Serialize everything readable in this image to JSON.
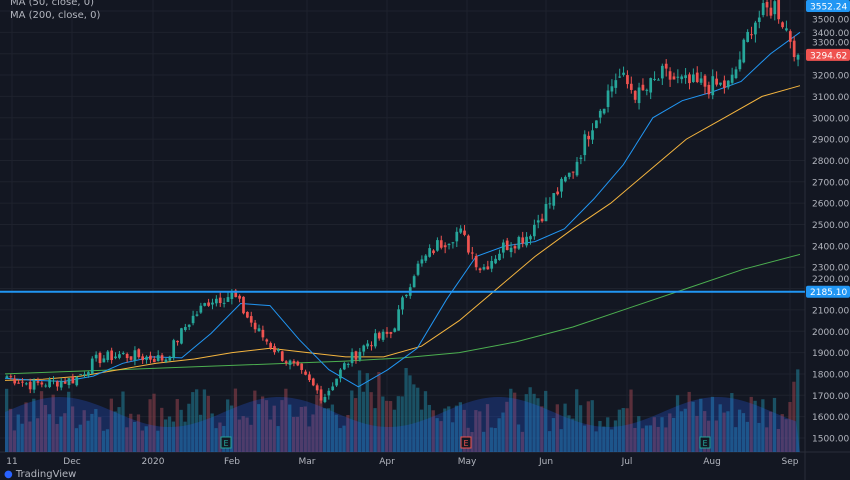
{
  "legend": {
    "ma50": "MA (50, close, 0)",
    "ma200": "MA (200, close, 0)"
  },
  "footer": {
    "brand": "TradingView"
  },
  "chart_data": {
    "type": "candlestick",
    "x_ticks": [
      "11",
      "Dec",
      "2020",
      "Feb",
      "Mar",
      "Apr",
      "May",
      "Jun",
      "Jul",
      "Aug",
      "Sep"
    ],
    "y_ticks": [
      1500,
      1600,
      1700,
      1800,
      1900,
      2000,
      2100,
      2200,
      2300,
      2400,
      2500,
      2600,
      2700,
      2800,
      2900,
      3000,
      3100,
      3200,
      3300,
      3400,
      3500
    ],
    "ylim": [
      1450,
      3560
    ],
    "close_path": [
      [
        "11",
        1790
      ],
      [
        "Nov-end",
        1750
      ],
      [
        "Dec",
        1760
      ],
      [
        "Dec-mid",
        1775
      ],
      [
        "Dec-end",
        1870
      ],
      [
        "2020",
        1890
      ],
      [
        "Jan-mid",
        1880
      ],
      [
        "Jan-end",
        1870
      ],
      [
        "Feb",
        2040
      ],
      [
        "Feb-mid",
        2150
      ],
      [
        "Feb-20",
        2170
      ],
      [
        "Feb-24",
        2010
      ],
      [
        "Mar",
        1900
      ],
      [
        "Mar-9",
        1800
      ],
      [
        "Mar-16",
        1690
      ],
      [
        "Mar-20",
        1850
      ],
      [
        "Mar-31",
        1950
      ],
      [
        "Apr",
        1990
      ],
      [
        "Apr-14",
        2280
      ],
      [
        "Apr-17",
        2400
      ],
      [
        "Apr-30",
        2470
      ],
      [
        "May",
        2290
      ],
      [
        "May-mid",
        2400
      ],
      [
        "Jun",
        2450
      ],
      [
        "Jun-mid",
        2600
      ],
      [
        "Jun-end",
        2750
      ],
      [
        "Jul",
        3000
      ],
      [
        "Jul-10",
        3200
      ],
      [
        "Jul-13",
        3100
      ],
      [
        "Jul-20",
        3200
      ],
      [
        "Jul-end",
        3160
      ],
      [
        "Aug",
        3150
      ],
      [
        "Aug-mid",
        3150
      ],
      [
        "Aug-end",
        3450
      ],
      [
        "Sep-2",
        3530
      ],
      [
        "Sep-3",
        3294.62
      ]
    ],
    "ma_fast": [
      1780,
      1770,
      1765,
      1790,
      1850,
      1880,
      1875,
      1990,
      2130,
      2120,
      1960,
      1820,
      1740,
      1820,
      1920,
      2150,
      2350,
      2400,
      2420,
      2480,
      2620,
      2780,
      3000,
      3080,
      3120,
      3170,
      3300,
      3400
    ],
    "ma50": [
      1770,
      1775,
      1790,
      1820,
      1850,
      1870,
      1900,
      1920,
      1900,
      1880,
      1880,
      1930,
      2050,
      2200,
      2350,
      2480,
      2600,
      2750,
      2900,
      3000,
      3100,
      3150
    ],
    "ma200": [
      1800,
      1810,
      1820,
      1830,
      1840,
      1850,
      1860,
      1875,
      1900,
      1950,
      2020,
      2110,
      2200,
      2290,
      2360
    ],
    "price_levels": {
      "last_high": "3552.24",
      "current": "3294.62",
      "horizontal_line": "2185.10"
    },
    "earnings_markers": [
      "E",
      "E",
      "E"
    ],
    "colors": {
      "up": "#26a69a",
      "down": "#ef5350",
      "ma_fast": "#2196f3",
      "ma50": "#f5b53f",
      "ma200": "#4caf50",
      "hline": "#2196f3",
      "volume": "#2962ff"
    }
  }
}
